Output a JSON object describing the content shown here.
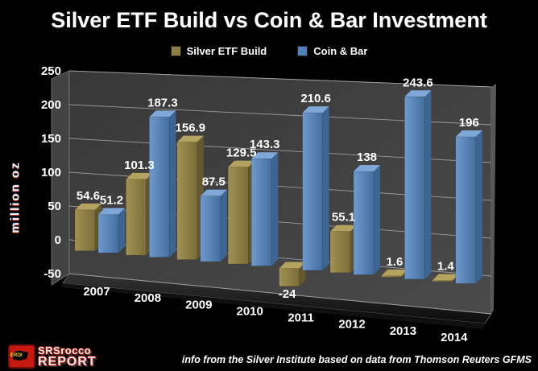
{
  "title": "Silver ETF Build vs Coin & Bar Investment",
  "chart_data": {
    "type": "bar",
    "style": "3d-clustered-column",
    "title": "Silver ETF Build vs Coin & Bar Investment",
    "categories": [
      "2007",
      "2008",
      "2009",
      "2010",
      "2011",
      "2012",
      "2013",
      "2014"
    ],
    "series": [
      {
        "name": "Silver ETF Build",
        "color": "#8d7e43",
        "values": [
          54.6,
          101.3,
          156.9,
          129.5,
          -24,
          55.1,
          1.6,
          1.4
        ]
      },
      {
        "name": "Coin & Bar",
        "color": "#4f81bd",
        "values": [
          51.2,
          187.3,
          87.5,
          143.3,
          210.6,
          138,
          243.6,
          196
        ]
      }
    ],
    "ylabel": "million oz",
    "ylim": [
      -50,
      250
    ],
    "yticks": [
      -50,
      0,
      50,
      100,
      150,
      200,
      250
    ],
    "grid": true,
    "legend_position": "top",
    "data_labels": true,
    "wall_color": "#3f3f3f",
    "gridline_color": "#aaaaaa"
  },
  "footer": {
    "caption": "info from the Silver Institute based on data from Thomson Reuters GFMS",
    "logo": {
      "badge_text": "EROI",
      "badge_color": "#c61a11",
      "title": "SRSrocco",
      "subtitle": "REPORT"
    }
  }
}
